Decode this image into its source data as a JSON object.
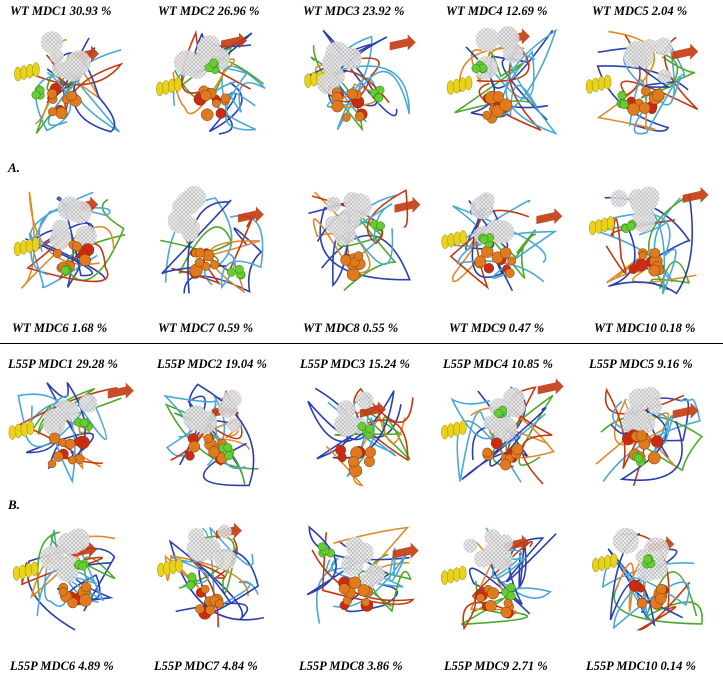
{
  "panel_a": {
    "letter": "A.",
    "top_labels": [
      "WT MDC1 30.93 %",
      "WT MDC2 26.96 %",
      "WT MDC3 23.92 %",
      "WT MDC4 12.69 %",
      "WT MDC5 2.04 %"
    ],
    "bottom_labels": [
      "WT MDC6 1.68 %",
      "WT MDC7 0.59 %",
      "WT MDC8 0.55 %",
      "WT MDC9 0.47 %",
      "WT MDC10 0.18 %"
    ]
  },
  "panel_b": {
    "letter": "B.",
    "top_labels": [
      "L55P MDC1 29.28 %",
      "L55P MDC2 19.04 %",
      "L55P MDC3 15.24 %",
      "L55P MDC4 10.85 %",
      "L55P MDC5 9.16 %"
    ],
    "bottom_labels": [
      "L55P MDC6 4.89 %",
      "L55P MDC7 4.84 %",
      "L55P MDC8 3.86 %",
      "L55P MDC9 2.71 %",
      "L55P MDC10 0.14 %"
    ]
  },
  "colors": {
    "mesh": "#b9b9b9",
    "green_spheres": "#66cc33",
    "orange_spheres": "#e07a1f",
    "red_spheres": "#cc2a12",
    "helix_yellow": "#e8d21a",
    "strand_red": "#c23a10",
    "coil_blue": "#2a3fb0",
    "coil_cyan": "#4aa8d8",
    "coil_green": "#4caa2a",
    "coil_orange": "#e08a2a"
  }
}
